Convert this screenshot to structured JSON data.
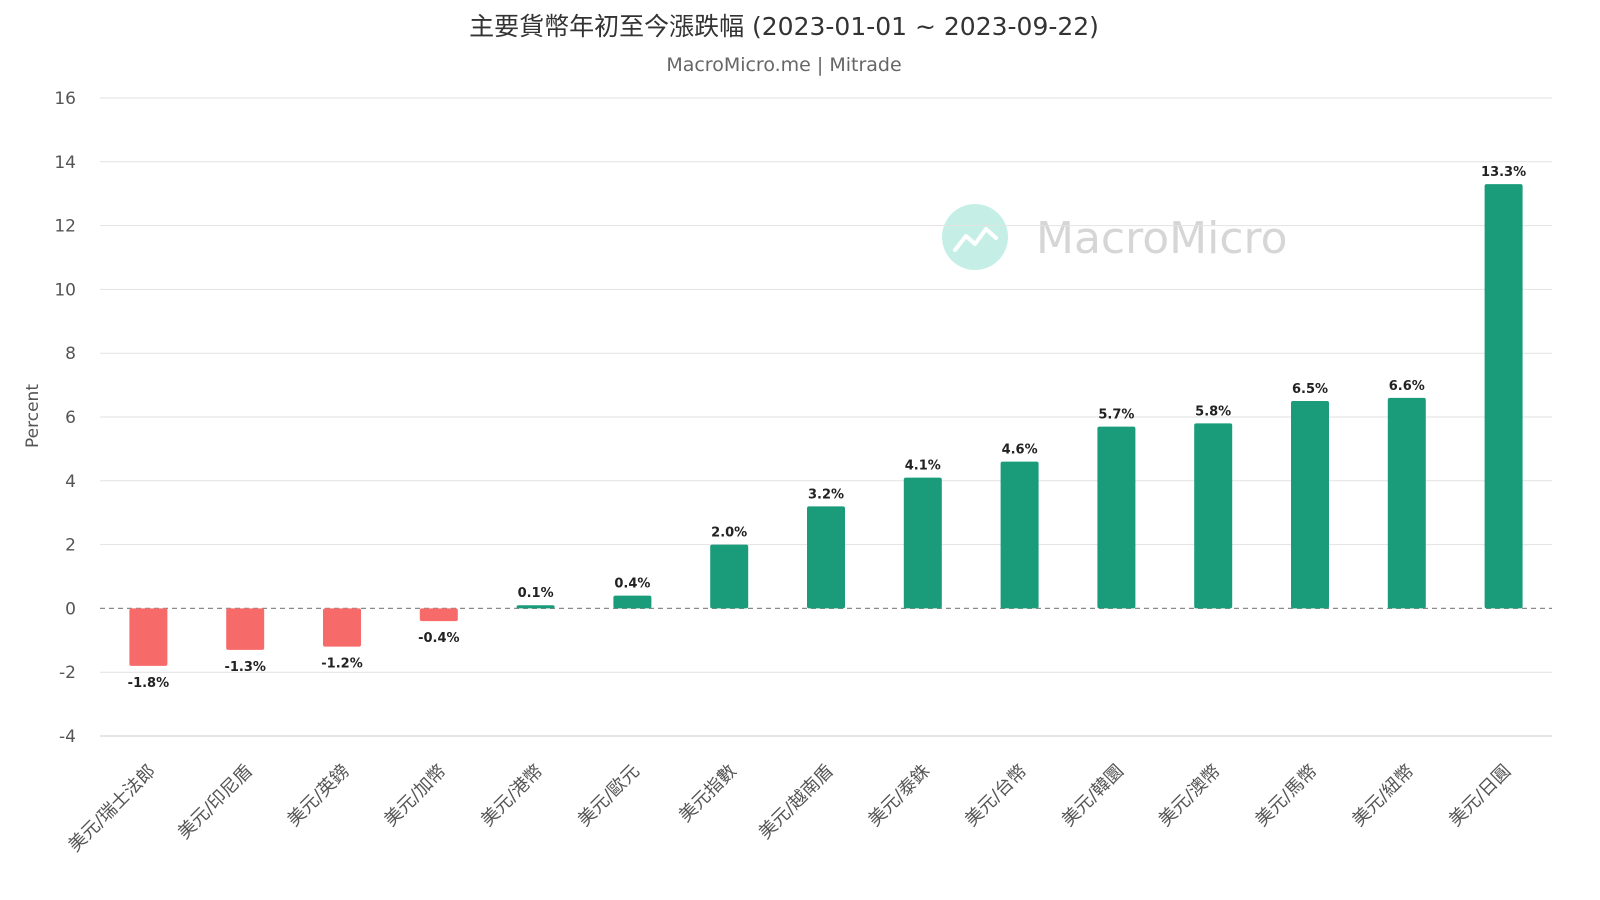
{
  "chart_data": {
    "type": "bar",
    "title": "主要貨幣年初至今漲跌幅 (2023-01-01 ~ 2023-09-22)",
    "subtitle": "MacroMicro.me | Mitrade",
    "xlabel": "",
    "ylabel": "Percent",
    "ylim": [
      -4,
      16
    ],
    "yticks": [
      16,
      14,
      12,
      10,
      8,
      6,
      4,
      2,
      0,
      -2,
      -4
    ],
    "grid": true,
    "watermark": "MacroMicro",
    "categories": [
      "美元/瑞士法郎",
      "美元/印尼盾",
      "美元/英鎊",
      "美元/加幣",
      "美元/港幣",
      "美元/歐元",
      "美元指數",
      "美元/越南盾",
      "美元/泰銖",
      "美元/台幣",
      "美元/韓圜",
      "美元/澳幣",
      "美元/馬幣",
      "美元/紐幣",
      "美元/日圓"
    ],
    "values": [
      -1.8,
      -1.3,
      -1.2,
      -0.4,
      0.1,
      0.4,
      2.0,
      3.2,
      4.1,
      4.6,
      5.7,
      5.8,
      6.5,
      6.6,
      13.3
    ],
    "data_labels": [
      "-1.8%",
      "-1.3%",
      "-1.2%",
      "-0.4%",
      "0.1%",
      "0.4%",
      "2.0%",
      "3.2%",
      "4.1%",
      "4.6%",
      "5.7%",
      "5.8%",
      "6.5%",
      "6.6%",
      "13.3%"
    ],
    "colors": {
      "positive": "#1a9c7b",
      "negative": "#f76a6a",
      "grid": "#e2e2e2",
      "zero_line": "#8a8a8a",
      "text": "#555555",
      "title": "#333333",
      "watermark_logo": "#c5efe6",
      "watermark_text": "#d6d6d6"
    }
  }
}
